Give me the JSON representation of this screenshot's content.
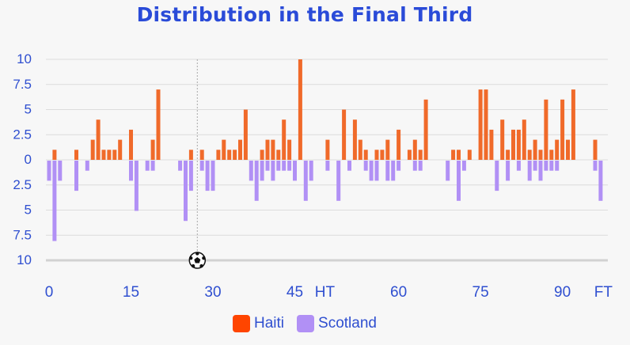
{
  "chart_data": {
    "type": "bar",
    "title": "Distribution in the Final Third",
    "x_ticks": [
      "0",
      "15",
      "30",
      "45",
      "HT",
      "60",
      "75",
      "90",
      "FT"
    ],
    "y_ticks": [
      "10",
      "7.5",
      "5",
      "2.5",
      "0",
      "2.5",
      "5",
      "7.5",
      "10"
    ],
    "ylim": [
      -10,
      10
    ],
    "grid": true,
    "legend_position": "bottom",
    "annotation": {
      "marker": "soccer-ball",
      "x": 27
    },
    "series": [
      {
        "name": "Haiti",
        "color": "#f06a2a",
        "legend_color": "#ff4500",
        "values": [
          {
            "x": 1,
            "v": 1
          },
          {
            "x": 5,
            "v": 1
          },
          {
            "x": 8,
            "v": 2
          },
          {
            "x": 9,
            "v": 4
          },
          {
            "x": 10,
            "v": 1
          },
          {
            "x": 11,
            "v": 1
          },
          {
            "x": 12,
            "v": 1
          },
          {
            "x": 13,
            "v": 2
          },
          {
            "x": 15,
            "v": 3
          },
          {
            "x": 19,
            "v": 2
          },
          {
            "x": 20,
            "v": 7
          },
          {
            "x": 26,
            "v": 1
          },
          {
            "x": 28,
            "v": 1
          },
          {
            "x": 31,
            "v": 1
          },
          {
            "x": 32,
            "v": 2
          },
          {
            "x": 33,
            "v": 1
          },
          {
            "x": 34,
            "v": 1
          },
          {
            "x": 35,
            "v": 2
          },
          {
            "x": 36,
            "v": 5
          },
          {
            "x": 39,
            "v": 1
          },
          {
            "x": 40,
            "v": 2
          },
          {
            "x": 41,
            "v": 2
          },
          {
            "x": 42,
            "v": 1
          },
          {
            "x": 43,
            "v": 4
          },
          {
            "x": 44,
            "v": 2
          },
          {
            "x": 46,
            "v": 10
          },
          {
            "x": 51,
            "v": 2
          },
          {
            "x": 54,
            "v": 5
          },
          {
            "x": 56,
            "v": 4
          },
          {
            "x": 57,
            "v": 2
          },
          {
            "x": 58,
            "v": 1
          },
          {
            "x": 60,
            "v": 1
          },
          {
            "x": 61,
            "v": 1
          },
          {
            "x": 62,
            "v": 2
          },
          {
            "x": 64,
            "v": 3
          },
          {
            "x": 66,
            "v": 1
          },
          {
            "x": 67,
            "v": 2
          },
          {
            "x": 68,
            "v": 1
          },
          {
            "x": 69,
            "v": 6
          },
          {
            "x": 74,
            "v": 1
          },
          {
            "x": 75,
            "v": 1
          },
          {
            "x": 77,
            "v": 1
          },
          {
            "x": 79,
            "v": 7
          },
          {
            "x": 80,
            "v": 7
          },
          {
            "x": 81,
            "v": 3
          },
          {
            "x": 83,
            "v": 4
          },
          {
            "x": 84,
            "v": 1
          },
          {
            "x": 85,
            "v": 3
          },
          {
            "x": 86,
            "v": 3
          },
          {
            "x": 87,
            "v": 4
          },
          {
            "x": 88,
            "v": 1
          },
          {
            "x": 89,
            "v": 2
          },
          {
            "x": 90,
            "v": 1
          },
          {
            "x": 91,
            "v": 6
          },
          {
            "x": 92,
            "v": 1
          },
          {
            "x": 93,
            "v": 2
          },
          {
            "x": 94,
            "v": 6
          },
          {
            "x": 95,
            "v": 2
          },
          {
            "x": 96,
            "v": 7
          },
          {
            "x": 100,
            "v": 2
          }
        ]
      },
      {
        "name": "Scotland",
        "color": "#b190f5",
        "legend_color": "#b190f5",
        "values": [
          {
            "x": 0,
            "v": 2
          },
          {
            "x": 1,
            "v": 8
          },
          {
            "x": 2,
            "v": 2
          },
          {
            "x": 5,
            "v": 3
          },
          {
            "x": 7,
            "v": 1
          },
          {
            "x": 15,
            "v": 2
          },
          {
            "x": 16,
            "v": 5
          },
          {
            "x": 18,
            "v": 1
          },
          {
            "x": 19,
            "v": 1
          },
          {
            "x": 24,
            "v": 1
          },
          {
            "x": 25,
            "v": 6
          },
          {
            "x": 26,
            "v": 3
          },
          {
            "x": 28,
            "v": 1
          },
          {
            "x": 29,
            "v": 3
          },
          {
            "x": 30,
            "v": 3
          },
          {
            "x": 37,
            "v": 2
          },
          {
            "x": 38,
            "v": 4
          },
          {
            "x": 39,
            "v": 2
          },
          {
            "x": 40,
            "v": 1
          },
          {
            "x": 41,
            "v": 2
          },
          {
            "x": 42,
            "v": 1
          },
          {
            "x": 43,
            "v": 1
          },
          {
            "x": 44,
            "v": 1
          },
          {
            "x": 45,
            "v": 2
          },
          {
            "x": 47,
            "v": 4
          },
          {
            "x": 48,
            "v": 2
          },
          {
            "x": 51,
            "v": 1
          },
          {
            "x": 53,
            "v": 4
          },
          {
            "x": 55,
            "v": 1
          },
          {
            "x": 58,
            "v": 1
          },
          {
            "x": 59,
            "v": 2
          },
          {
            "x": 60,
            "v": 2
          },
          {
            "x": 62,
            "v": 2
          },
          {
            "x": 63,
            "v": 2
          },
          {
            "x": 64,
            "v": 1
          },
          {
            "x": 67,
            "v": 1
          },
          {
            "x": 68,
            "v": 1
          },
          {
            "x": 73,
            "v": 2
          },
          {
            "x": 75,
            "v": 4
          },
          {
            "x": 76,
            "v": 1
          },
          {
            "x": 82,
            "v": 3
          },
          {
            "x": 84,
            "v": 2
          },
          {
            "x": 86,
            "v": 1
          },
          {
            "x": 88,
            "v": 2
          },
          {
            "x": 89,
            "v": 1
          },
          {
            "x": 90,
            "v": 2
          },
          {
            "x": 91,
            "v": 1
          },
          {
            "x": 92,
            "v": 1
          },
          {
            "x": 93,
            "v": 1
          },
          {
            "x": 100,
            "v": 1
          },
          {
            "x": 101,
            "v": 4
          }
        ]
      }
    ]
  }
}
